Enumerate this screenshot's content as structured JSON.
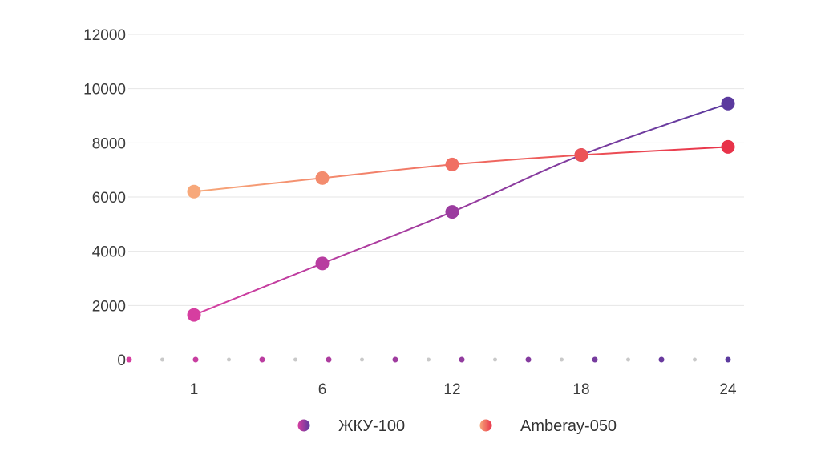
{
  "chart_data": {
    "type": "line",
    "title": "",
    "xlabel": "",
    "ylabel": "",
    "ylim": [
      0,
      12000
    ],
    "yticks": [
      0,
      2000,
      4000,
      6000,
      8000,
      10000,
      12000
    ],
    "grid": true,
    "legend_position": "bottom-center",
    "categories": [
      "1",
      "6",
      "12",
      "18",
      "24"
    ],
    "series": [
      {
        "name": "ЖКУ-100",
        "x": [
          1,
          6,
          12,
          18,
          24
        ],
        "values": [
          1650,
          3550,
          5450,
          7550,
          9450
        ],
        "color_start": "#d63ea0",
        "color_end": "#5b3a9e"
      },
      {
        "name": "Amberay-050",
        "x": [
          1,
          6,
          12,
          18,
          24
        ],
        "values": [
          6200,
          6700,
          7200,
          7550,
          7850
        ],
        "color_start": "#f7a87a",
        "color_end": "#e8334a"
      }
    ]
  }
}
